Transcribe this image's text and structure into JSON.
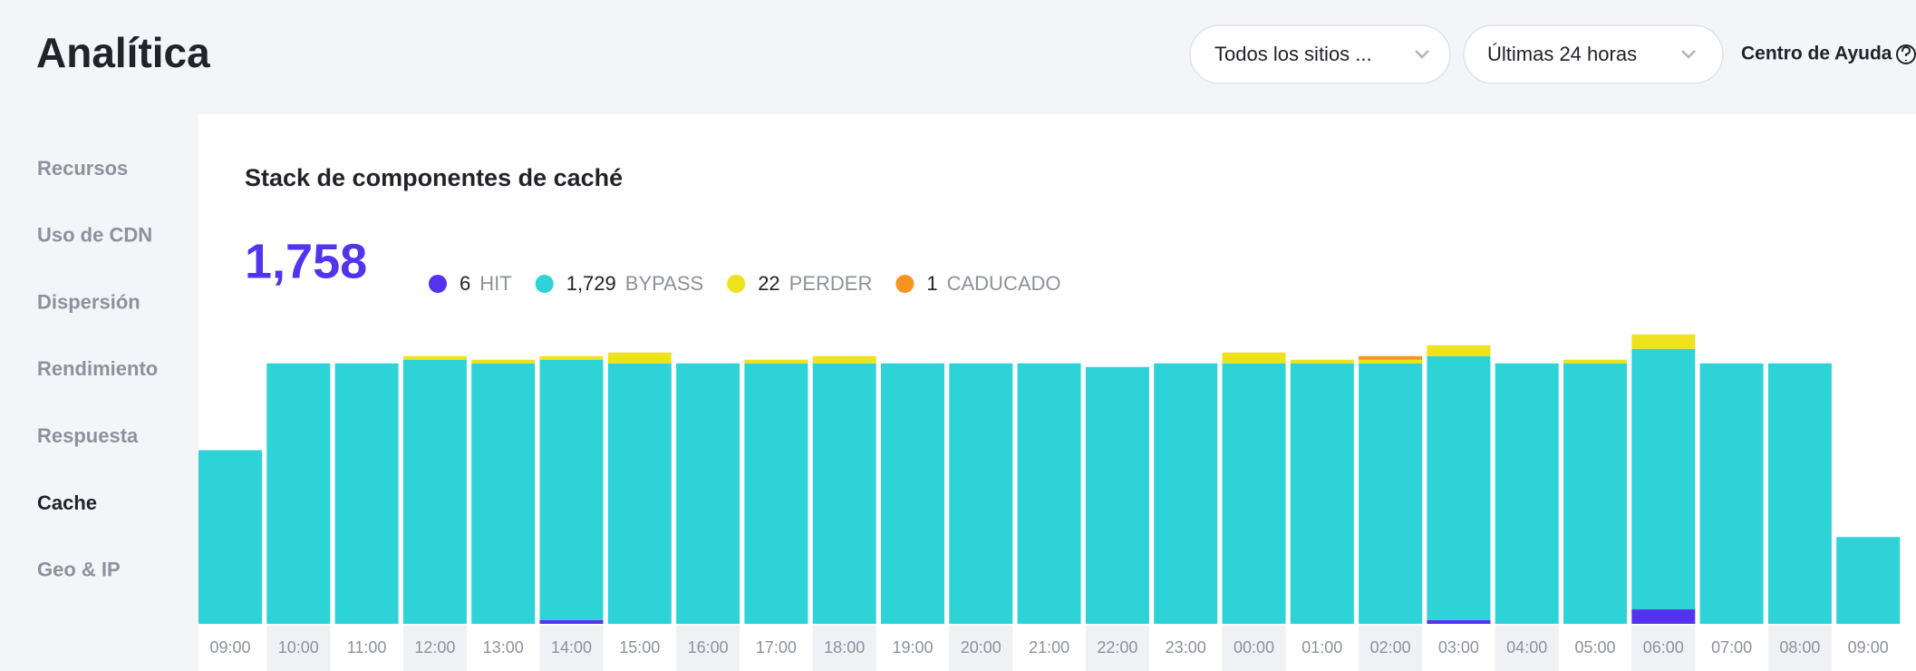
{
  "app_title": "Analítica",
  "filters": [
    "Todos los sitios ...",
    "Últimas 24 horas"
  ],
  "help": "Centro de Ayuda",
  "nav": [
    "Recursos",
    "Uso de CDN",
    "Dispersión",
    "Rendimiento",
    "Respuesta",
    "Cache",
    "Geo & IP"
  ],
  "active_nav": "Cache",
  "chart_data": {
    "type": "stacked-bar",
    "title": "Stack de componentes de caché",
    "total": {
      "value": 1758,
      "label": "1,758"
    },
    "categories": [
      "09:00",
      "10:00",
      "11:00",
      "12:00",
      "13:00",
      "14:00",
      "15:00",
      "16:00",
      "17:00",
      "18:00",
      "19:00",
      "20:00",
      "21:00",
      "22:00",
      "23:00",
      "00:00",
      "01:00",
      "02:00",
      "03:00",
      "04:00",
      "05:00",
      "06:00",
      "07:00",
      "08:00",
      "09:00"
    ],
    "series": [
      {
        "name": "HIT",
        "color": "#5333ed",
        "total": 6,
        "values": [
          0,
          0,
          0,
          0,
          0,
          1,
          0,
          0,
          0,
          0,
          0,
          0,
          0,
          0,
          0,
          0,
          0,
          0,
          1,
          0,
          0,
          4,
          0,
          0,
          0
        ]
      },
      {
        "name": "BYPASS",
        "color": "#2ed3d7",
        "total": {
          "value": 1729,
          "label": "1,729"
        },
        "values": [
          48,
          72,
          72,
          73,
          72,
          72,
          72,
          72,
          72,
          72,
          72,
          72,
          72,
          71,
          72,
          72,
          72,
          72,
          73,
          72,
          72,
          72,
          72,
          72,
          24
        ]
      },
      {
        "name": "PERDER",
        "color": "#ede21b",
        "total": 22,
        "values": [
          0,
          0,
          0,
          1,
          1,
          1,
          3,
          0,
          1,
          2,
          0,
          0,
          0,
          0,
          0,
          3,
          1,
          1,
          3,
          0,
          1,
          4,
          0,
          0,
          0
        ]
      },
      {
        "name": "CADUCADO",
        "color": "#f7941d",
        "total": 1,
        "values": [
          0,
          0,
          0,
          0,
          0,
          0,
          0,
          0,
          0,
          0,
          0,
          0,
          0,
          0,
          0,
          0,
          0,
          1,
          0,
          0,
          0,
          0,
          0,
          0,
          0
        ]
      }
    ]
  }
}
